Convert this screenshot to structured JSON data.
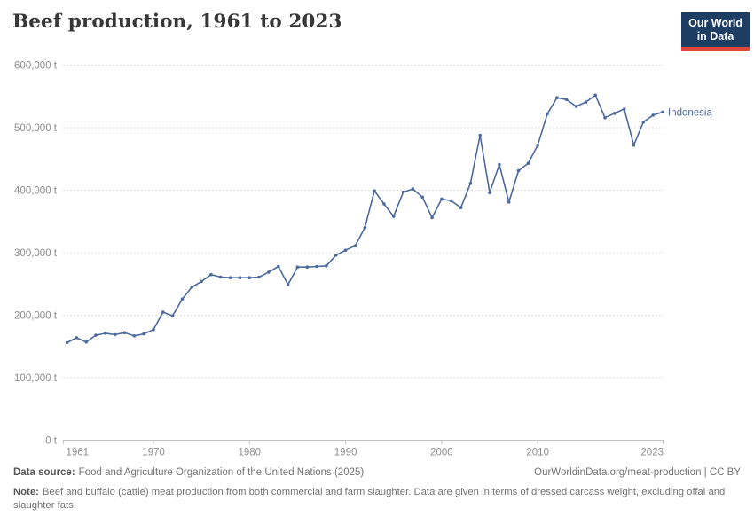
{
  "header": {
    "title": "Beef production, 1961 to 2023"
  },
  "logo": {
    "line1": "Our World",
    "line2": "in Data",
    "bg_color": "#1d3d63",
    "accent_color": "#df4538"
  },
  "chart_data": {
    "type": "line",
    "title": "Beef production, 1961 to 2023",
    "unit": "t",
    "grid": "horizontal-dashed",
    "legend_position": "end-of-line-label",
    "entity_label": "Indonesia",
    "line_color": "#4c6a9c",
    "xlim": [
      1961,
      2023
    ],
    "ylim": [
      0,
      600000
    ],
    "xticks": [
      1961,
      1970,
      1980,
      1990,
      2000,
      2010,
      2023
    ],
    "yticks": [
      {
        "value": 0,
        "label": "0 t"
      },
      {
        "value": 100000,
        "label": "100,000 t"
      },
      {
        "value": 200000,
        "label": "200,000 t"
      },
      {
        "value": 300000,
        "label": "300,000 t"
      },
      {
        "value": 400000,
        "label": "400,000 t"
      },
      {
        "value": 500000,
        "label": "500,000 t"
      },
      {
        "value": 600000,
        "label": "600,000 t"
      }
    ],
    "series": [
      {
        "name": "Indonesia",
        "color": "#4c6a9c",
        "x": [
          1961,
          1962,
          1963,
          1964,
          1965,
          1966,
          1967,
          1968,
          1969,
          1970,
          1971,
          1972,
          1973,
          1974,
          1975,
          1976,
          1977,
          1978,
          1979,
          1980,
          1981,
          1982,
          1983,
          1984,
          1985,
          1986,
          1987,
          1988,
          1989,
          1990,
          1991,
          1992,
          1993,
          1994,
          1995,
          1996,
          1997,
          1998,
          1999,
          2000,
          2001,
          2002,
          2003,
          2004,
          2005,
          2006,
          2007,
          2008,
          2009,
          2010,
          2011,
          2012,
          2013,
          2014,
          2015,
          2016,
          2017,
          2018,
          2019,
          2020,
          2021,
          2022,
          2023
        ],
        "values": [
          156000,
          164000,
          157000,
          168000,
          171000,
          169000,
          172000,
          167000,
          170000,
          177000,
          205000,
          199000,
          226000,
          245000,
          254000,
          265000,
          261000,
          260000,
          260000,
          260000,
          261000,
          269000,
          278000,
          249000,
          277000,
          277000,
          278000,
          279000,
          296000,
          304000,
          311000,
          340000,
          399000,
          378000,
          358000,
          397000,
          402000,
          389000,
          356000,
          386000,
          383000,
          372000,
          411000,
          488000,
          396000,
          441000,
          381000,
          431000,
          443000,
          472000,
          522000,
          548000,
          545000,
          534000,
          541000,
          552000,
          516000,
          523000,
          530000,
          472000,
          509000,
          520000,
          525000
        ]
      }
    ]
  },
  "footer": {
    "datasource_label": "Data source:",
    "datasource_text": "Food and Agriculture Organization of the United Nations (2025)",
    "credit": "OurWorldinData.org/meat-production | CC BY",
    "note_label": "Note:",
    "note_text": "Beef and buffalo (cattle) meat production from both commercial and farm slaughter. Data are given in terms of dressed carcass weight, excluding offal and slaughter fats."
  }
}
